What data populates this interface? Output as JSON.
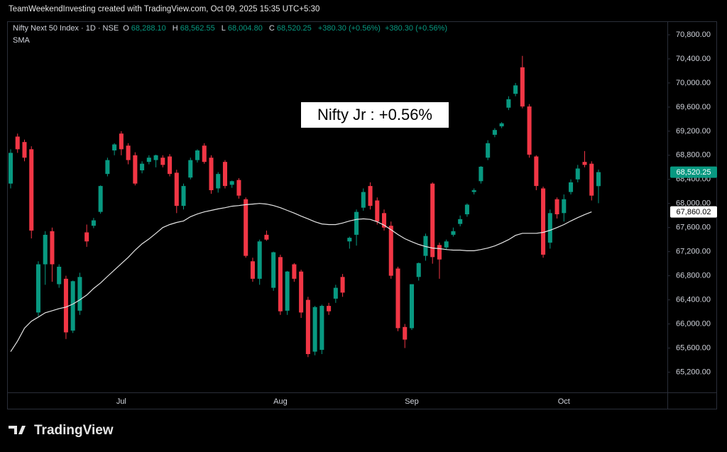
{
  "header": {
    "credit": "TeamWeekendInvesting created with TradingView.com, Oct 09, 2025 15:35 UTC+5:30",
    "symbol": "Nifty Next 50 Index · 1D · NSE",
    "ohlc": [
      {
        "key": "O",
        "value": "68,288.10"
      },
      {
        "key": "H",
        "value": "68,562.55"
      },
      {
        "key": "L",
        "value": "68,004.80"
      },
      {
        "key": "C",
        "value": "68,520.25"
      }
    ],
    "change": [
      "+380.30 (+0.56%)",
      "+380.30 (+0.56%)"
    ],
    "indicator": "SMA"
  },
  "footer": {
    "logo": "TradingView"
  },
  "chart_data": {
    "type": "candlestick",
    "annotation": "Nifty Jr : +0.56%",
    "categories": [
      null,
      null,
      null,
      null,
      null,
      null,
      null,
      null,
      null,
      null,
      null,
      null,
      null,
      null,
      null,
      null,
      "Jul",
      null,
      null,
      null,
      null,
      null,
      null,
      null,
      null,
      null,
      null,
      null,
      null,
      null,
      null,
      null,
      null,
      null,
      null,
      null,
      null,
      null,
      null,
      "Aug",
      null,
      null,
      null,
      null,
      null,
      null,
      null,
      null,
      null,
      null,
      null,
      null,
      null,
      null,
      null,
      null,
      null,
      null,
      "Sep",
      null,
      null,
      null,
      null,
      null,
      null,
      null,
      null,
      null,
      null,
      null,
      null,
      null,
      null,
      null,
      null,
      null,
      null,
      null,
      null,
      null,
      "Oct",
      null,
      null,
      null,
      null,
      null
    ],
    "open": [
      68330,
      69110,
      69020,
      68900,
      66190,
      66990,
      67540,
      66660,
      66750,
      65890,
      66220,
      67520,
      67630,
      67860,
      68490,
      68880,
      69160,
      68960,
      68800,
      68550,
      68690,
      68720,
      68760,
      68780,
      68510,
      67960,
      68430,
      68720,
      68960,
      68760,
      68250,
      68690,
      68310,
      68390,
      68070,
      67040,
      66750,
      67480,
      66600,
      67110,
      66220,
      66990,
      66870,
      66400,
      65540,
      65570,
      66300,
      66420,
      66780,
      67370,
      67480,
      67930,
      68290,
      68050,
      67840,
      67630,
      66920,
      65950,
      65930,
      66780,
      67130,
      68330,
      67310,
      67270,
      67480,
      67660,
      67820,
      68190,
      68370,
      68760,
      69140,
      69280,
      69590,
      69820,
      70260,
      69610,
      68780,
      68250,
      67350,
      68070,
      67840,
      68190,
      68400,
      68690,
      68660,
      68288.1
    ],
    "high": [
      68900,
      69160,
      69060,
      68950,
      67040,
      67540,
      67600,
      66990,
      66800,
      66720,
      66850,
      67650,
      67760,
      68300,
      68760,
      69000,
      69200,
      69000,
      68850,
      68700,
      68800,
      68810,
      68800,
      68820,
      68560,
      68330,
      68760,
      68900,
      69000,
      68800,
      68520,
      68720,
      68380,
      68420,
      68100,
      67100,
      67400,
      67550,
      67200,
      67150,
      66880,
      67010,
      66900,
      66450,
      66300,
      66320,
      66350,
      66650,
      66830,
      67450,
      67900,
      68250,
      68350,
      68100,
      67900,
      67700,
      66950,
      66000,
      66660,
      67020,
      67500,
      68350,
      67350,
      67400,
      67600,
      67800,
      68000,
      68250,
      68620,
      69050,
      69250,
      69350,
      69780,
      70000,
      70450,
      69650,
      68800,
      68280,
      67900,
      68100,
      68150,
      68400,
      68640,
      68870,
      68700,
      68562.55
    ],
    "low": [
      68250,
      68840,
      68700,
      67420,
      66130,
      66650,
      66700,
      66600,
      65750,
      65850,
      66150,
      67280,
      67590,
      67830,
      68450,
      68800,
      68800,
      68650,
      68300,
      68500,
      68650,
      68600,
      68600,
      68450,
      67840,
      67900,
      68400,
      68680,
      68660,
      68160,
      68180,
      68250,
      68260,
      68080,
      67100,
      66700,
      66650,
      67380,
      66550,
      66150,
      66150,
      66700,
      66100,
      65450,
      65480,
      65500,
      66150,
      66350,
      66450,
      67250,
      67300,
      67880,
      67900,
      67650,
      67550,
      66750,
      65880,
      65600,
      65900,
      66720,
      67050,
      67000,
      66750,
      67230,
      67450,
      67620,
      67780,
      68150,
      68330,
      68720,
      69100,
      69250,
      69550,
      69780,
      69580,
      68760,
      68220,
      67100,
      67250,
      67750,
      67700,
      68150,
      68350,
      68600,
      68050,
      68004.8
    ],
    "close": [
      68840,
      68900,
      68760,
      67550,
      66990,
      67480,
      66990,
      66950,
      65860,
      66710,
      66780,
      67370,
      67720,
      68290,
      68720,
      68980,
      68900,
      68720,
      68330,
      68660,
      68760,
      68800,
      68640,
      68490,
      67960,
      68290,
      68720,
      68880,
      68690,
      68220,
      68490,
      68290,
      68370,
      68130,
      67130,
      66750,
      67370,
      67400,
      67190,
      66210,
      66870,
      66750,
      66190,
      65500,
      66280,
      66300,
      66210,
      66600,
      66520,
      67430,
      67860,
      68190,
      67960,
      67700,
      67600,
      66800,
      65930,
      65740,
      66660,
      67010,
      67460,
      67110,
      67070,
      67370,
      67540,
      67740,
      67980,
      68220,
      68610,
      69000,
      69220,
      69330,
      69730,
      69960,
      69610,
      68810,
      68290,
      67150,
      67840,
      67820,
      68070,
      68350,
      68580,
      68640,
      68130,
      68520.25
    ],
    "up_color": "#089981",
    "down_color": "#f23645",
    "sma": {
      "name": "SMA",
      "color": "#e6e6e6",
      "values": [
        65540,
        65715,
        65930,
        66045,
        66115,
        66185,
        66220,
        66255,
        66280,
        66330,
        66400,
        66480,
        66590,
        66680,
        66790,
        66895,
        67000,
        67105,
        67225,
        67330,
        67410,
        67505,
        67600,
        67650,
        67685,
        67710,
        67780,
        67825,
        67860,
        67885,
        67910,
        67930,
        67955,
        67965,
        67980,
        67990,
        68000,
        67990,
        67965,
        67930,
        67885,
        67840,
        67790,
        67745,
        67695,
        67660,
        67650,
        67650,
        67675,
        67710,
        67735,
        67745,
        67735,
        67695,
        67640,
        67565,
        67485,
        67415,
        67365,
        67320,
        67285,
        67260,
        67250,
        67235,
        67225,
        67225,
        67215,
        67215,
        67235,
        67260,
        67295,
        67345,
        67400,
        67470,
        67505,
        67505,
        67505,
        67520,
        67555,
        67600,
        67650,
        67710,
        67765,
        67815,
        67860.02
      ]
    },
    "price_labels": [
      {
        "value": 68520.25,
        "label": "68,520.25",
        "color": "#089981"
      },
      {
        "value": 67860.02,
        "label": "67,860.02",
        "color": "#ffffff"
      }
    ],
    "ylim": [
      64593,
      71024
    ],
    "yticks": [
      {
        "value": 65200,
        "label": "65,200.00"
      },
      {
        "value": 65600,
        "label": "65,600.00"
      },
      {
        "value": 66000,
        "label": "66,000.00"
      },
      {
        "value": 66400,
        "label": "66,400.00"
      },
      {
        "value": 66800,
        "label": "66,800.00"
      },
      {
        "value": 67200,
        "label": "67,200.00"
      },
      {
        "value": 67600,
        "label": "67,600.00"
      },
      {
        "value": 68000,
        "label": "68,000.00"
      },
      {
        "value": 68400,
        "label": "68,400.00"
      },
      {
        "value": 68800,
        "label": "68,800.00"
      },
      {
        "value": 69200,
        "label": "69,200.00"
      },
      {
        "value": 69600,
        "label": "69,600.00"
      },
      {
        "value": 70000,
        "label": "70,000.00"
      },
      {
        "value": 70400,
        "label": "70,400.00"
      },
      {
        "value": 70800,
        "label": "70,800.00"
      }
    ],
    "grid": false
  }
}
